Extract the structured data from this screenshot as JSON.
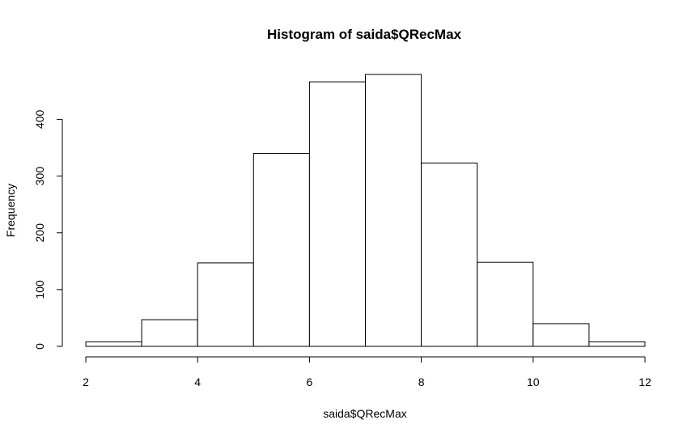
{
  "chart_data": {
    "type": "bar",
    "title": "Histogram of saida$QRecMax",
    "xlabel": "saida$QRecMax",
    "ylabel": "Frequency",
    "bins": [
      {
        "from": 2,
        "to": 3,
        "count": 8
      },
      {
        "from": 3,
        "to": 4,
        "count": 47
      },
      {
        "from": 4,
        "to": 5,
        "count": 147
      },
      {
        "from": 5,
        "to": 6,
        "count": 340
      },
      {
        "from": 6,
        "to": 7,
        "count": 466
      },
      {
        "from": 7,
        "to": 8,
        "count": 479
      },
      {
        "from": 8,
        "to": 9,
        "count": 323
      },
      {
        "from": 9,
        "to": 10,
        "count": 148
      },
      {
        "from": 10,
        "to": 11,
        "count": 40
      },
      {
        "from": 11,
        "to": 12,
        "count": 8
      }
    ],
    "x_ticks": [
      2,
      4,
      6,
      8,
      10,
      12
    ],
    "y_ticks": [
      0,
      100,
      200,
      300,
      400
    ],
    "xlim": [
      2,
      12
    ],
    "ylim": [
      0,
      479
    ],
    "grid": false,
    "legend": "none",
    "colors": {
      "bar_fill": "#ffffff",
      "bar_stroke": "#000000"
    }
  }
}
